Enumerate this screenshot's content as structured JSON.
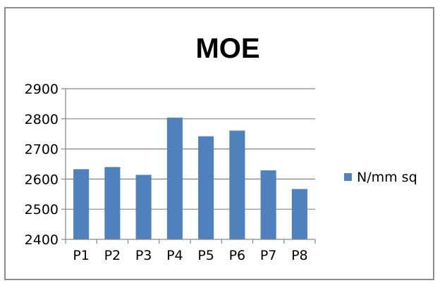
{
  "chart_data": {
    "type": "bar",
    "title": "MOE",
    "xlabel": "",
    "ylabel": "",
    "categories": [
      "P1",
      "P2",
      "P3",
      "P4",
      "P5",
      "P6",
      "P7",
      "P8"
    ],
    "series": [
      {
        "name": "N/mm sq",
        "values": [
          2633,
          2640,
          2614,
          2804,
          2742,
          2761,
          2629,
          2567
        ],
        "color": "#4f81bd"
      }
    ],
    "ylim": [
      2400,
      2900
    ],
    "yticks": [
      "2400",
      "2500",
      "2600",
      "2700",
      "2800",
      "2900"
    ],
    "grid": true,
    "legend": "right"
  }
}
